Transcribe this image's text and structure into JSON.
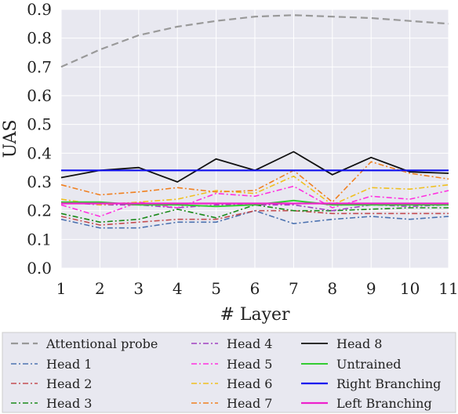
{
  "chart_data": {
    "type": "line",
    "title": "",
    "xlabel": "# Layer",
    "ylabel": "UAS",
    "x": [
      1,
      2,
      3,
      4,
      5,
      6,
      7,
      8,
      9,
      10,
      11
    ],
    "xlim": [
      1,
      11
    ],
    "ylim": [
      0.0,
      0.9
    ],
    "xticks": [
      "1",
      "2",
      "3",
      "4",
      "5",
      "6",
      "7",
      "8",
      "9",
      "10",
      "11"
    ],
    "yticks": [
      "0.0",
      "0.1",
      "0.2",
      "0.3",
      "0.4",
      "0.5",
      "0.6",
      "0.7",
      "0.8",
      "0.9"
    ],
    "grid": true,
    "background": "#e8e8f0",
    "legend_position": "bottom",
    "series": [
      {
        "name": "Attentional probe",
        "color": "#999999",
        "style": "dashed",
        "width": 2.2,
        "values": [
          0.7,
          0.76,
          0.81,
          0.84,
          0.86,
          0.875,
          0.88,
          0.875,
          0.87,
          0.86,
          0.85
        ]
      },
      {
        "name": "Head 1",
        "color": "#4c72b0",
        "style": "dashdot",
        "width": 1.6,
        "values": [
          0.17,
          0.14,
          0.14,
          0.16,
          0.16,
          0.2,
          0.155,
          0.17,
          0.18,
          0.17,
          0.18
        ]
      },
      {
        "name": "Head 2",
        "color": "#c44e52",
        "style": "dashdot",
        "width": 1.6,
        "values": [
          0.18,
          0.15,
          0.16,
          0.17,
          0.17,
          0.2,
          0.2,
          0.19,
          0.19,
          0.19,
          0.19
        ]
      },
      {
        "name": "Head 3",
        "color": "#1a8a1a",
        "style": "dashdot",
        "width": 1.6,
        "values": [
          0.19,
          0.16,
          0.17,
          0.205,
          0.175,
          0.22,
          0.2,
          0.2,
          0.205,
          0.21,
          0.21
        ]
      },
      {
        "name": "Head 4",
        "color": "#a040c0",
        "style": "dashdot",
        "width": 1.6,
        "values": [
          0.23,
          0.22,
          0.22,
          0.21,
          0.22,
          0.22,
          0.22,
          0.2,
          0.22,
          0.215,
          0.22
        ]
      },
      {
        "name": "Head 5",
        "color": "#ff30e0",
        "style": "dashdot",
        "width": 1.6,
        "values": [
          0.22,
          0.18,
          0.23,
          0.21,
          0.26,
          0.25,
          0.285,
          0.21,
          0.25,
          0.24,
          0.27
        ]
      },
      {
        "name": "Head 6",
        "color": "#f0c020",
        "style": "dashdot",
        "width": 1.6,
        "values": [
          0.24,
          0.22,
          0.23,
          0.24,
          0.27,
          0.26,
          0.32,
          0.22,
          0.28,
          0.275,
          0.29
        ]
      },
      {
        "name": "Head 7",
        "color": "#f08020",
        "style": "dashdot",
        "width": 1.6,
        "values": [
          0.29,
          0.255,
          0.265,
          0.28,
          0.265,
          0.27,
          0.34,
          0.23,
          0.37,
          0.33,
          0.31
        ]
      },
      {
        "name": "Head 8",
        "color": "#111111",
        "style": "solid",
        "width": 1.8,
        "values": [
          0.315,
          0.34,
          0.35,
          0.3,
          0.38,
          0.34,
          0.405,
          0.325,
          0.385,
          0.335,
          0.33
        ]
      },
      {
        "name": "Untrained",
        "color": "#33cc33",
        "style": "solid",
        "width": 2,
        "values": [
          0.23,
          0.23,
          0.22,
          0.22,
          0.215,
          0.22,
          0.235,
          0.22,
          0.22,
          0.22,
          0.22
        ]
      },
      {
        "name": "Right Branching",
        "color": "#1010ee",
        "style": "solid",
        "width": 2.2,
        "values": [
          0.34,
          0.34,
          0.34,
          0.34,
          0.34,
          0.34,
          0.34,
          0.34,
          0.34,
          0.34,
          0.34
        ]
      },
      {
        "name": "Left Branching",
        "color": "#ee22cc",
        "style": "solid",
        "width": 2.2,
        "values": [
          0.225,
          0.225,
          0.225,
          0.225,
          0.225,
          0.225,
          0.225,
          0.225,
          0.225,
          0.225,
          0.225
        ]
      }
    ]
  }
}
